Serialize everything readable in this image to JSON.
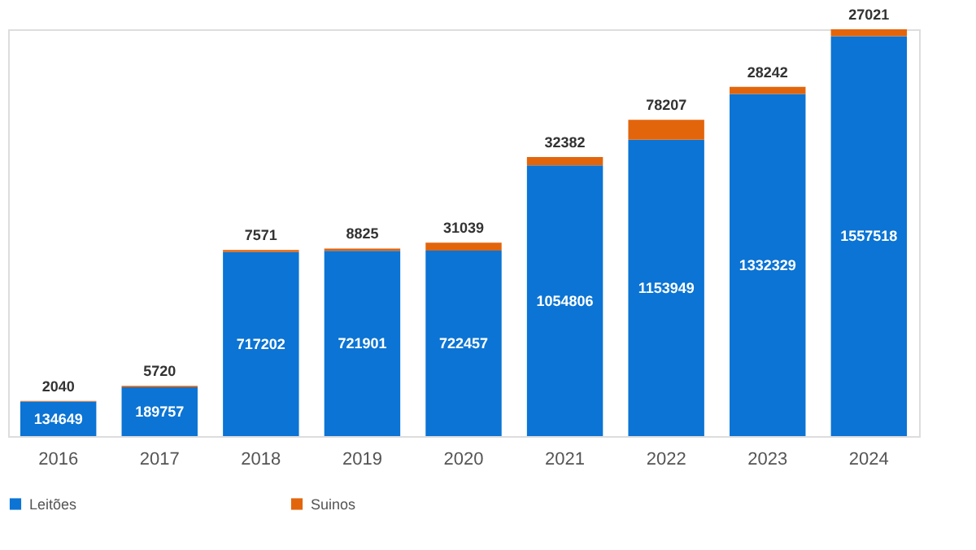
{
  "chart_data": {
    "type": "bar",
    "stacked": true,
    "data_labels": true,
    "legend": "bottom",
    "grid": false,
    "categories": [
      "2016",
      "2017",
      "2018",
      "2019",
      "2020",
      "2021",
      "2022",
      "2023",
      "2024"
    ],
    "series": [
      {
        "name": "Leitões",
        "color": "#0b74d4",
        "values": [
          134649,
          189757,
          717202,
          721901,
          722457,
          1054806,
          1153949,
          1332329,
          1557518
        ]
      },
      {
        "name": "Suinos",
        "color": "#e2650c",
        "values": [
          2040,
          5720,
          7571,
          8825,
          31039,
          32382,
          78207,
          28242,
          27021
        ]
      }
    ]
  }
}
